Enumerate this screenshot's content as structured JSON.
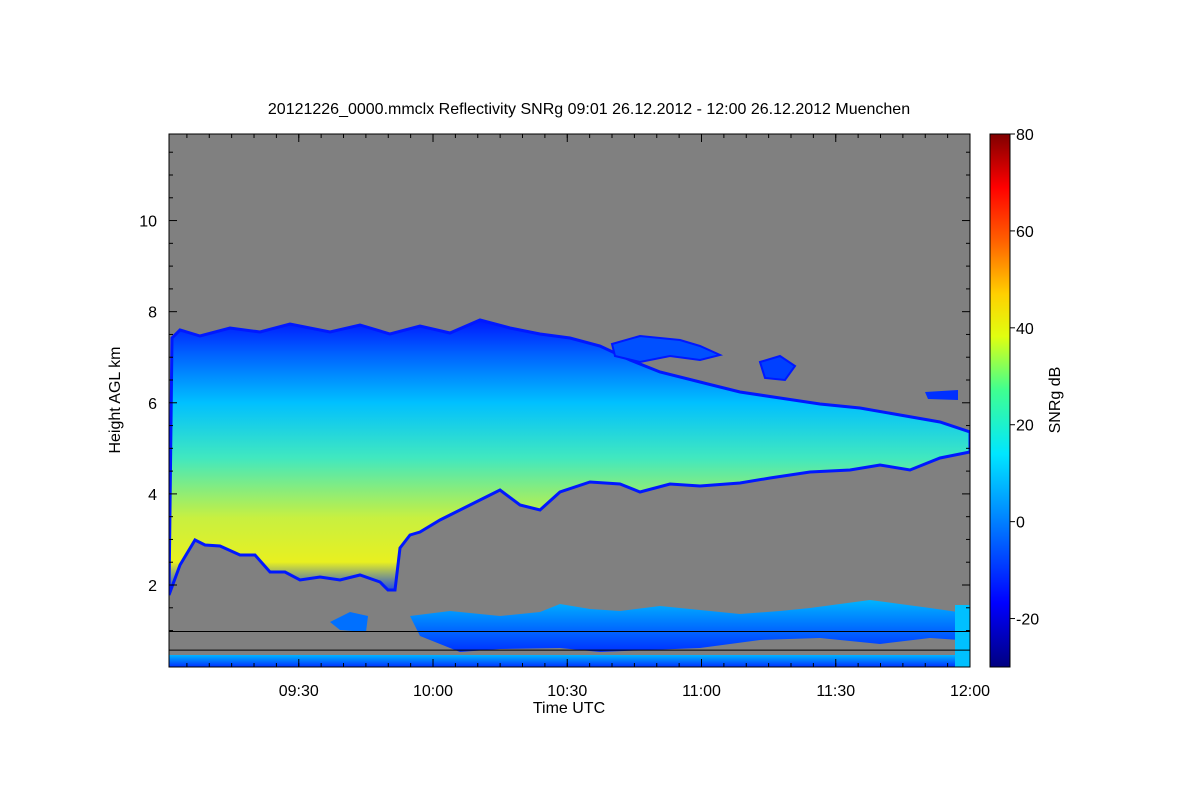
{
  "chart_data": {
    "type": "heatmap",
    "title": "20121226_0000.mmclx Reflectivity SNRg   09:01 26.12.2012 - 12:00 26.12.2012 Muenchen",
    "xlabel": "Time UTC",
    "ylabel": "Height AGL km",
    "x_range": [
      "09:01",
      "12:00"
    ],
    "x_ticks": [
      "09:30",
      "10:00",
      "10:30",
      "11:00",
      "11:30",
      "12:00"
    ],
    "ylim": [
      0.2,
      11.9
    ],
    "y_ticks": [
      2,
      4,
      6,
      8,
      10
    ],
    "colorbar": {
      "label": "SNRg dB",
      "range": [
        -30,
        80
      ],
      "ticks": [
        -20,
        0,
        20,
        40,
        60,
        80
      ]
    },
    "background_color": "#808080",
    "colors": {
      "low": "#000080",
      "mid_low": "#0000ff",
      "mid": "#00c8ff",
      "mid_high": "#ffff00",
      "high": "#ff0000",
      "max": "#800000"
    },
    "reference_lines_km": [
      0.98,
      0.57
    ]
  }
}
